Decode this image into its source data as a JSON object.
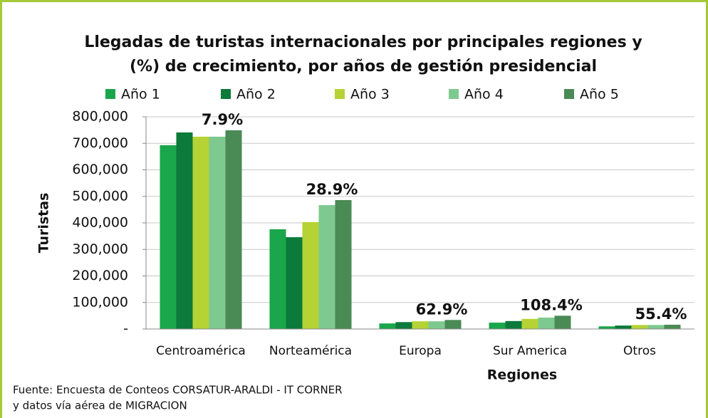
{
  "chart_data": {
    "type": "bar",
    "title": [
      "Llegadas de turistas internacionales por principales regiones y",
      "(%) de crecimiento, por años de gestión presidencial"
    ],
    "categories": [
      "Centroamérica",
      "Norteamérica",
      "Europa",
      "Sur America",
      "Otros"
    ],
    "series": [
      {
        "name": "Año 1",
        "color": "#1aa64b",
        "values": [
          693000,
          376000,
          21000,
          24000,
          10000
        ]
      },
      {
        "name": "Año 2",
        "color": "#0b7a3a",
        "values": [
          741000,
          346000,
          26000,
          30000,
          13000
        ]
      },
      {
        "name": "Año 3",
        "color": "#b5d334",
        "values": [
          725000,
          403000,
          29000,
          38000,
          15000
        ]
      },
      {
        "name": "Año 4",
        "color": "#7ec98f",
        "values": [
          725000,
          467000,
          29000,
          43000,
          15000
        ]
      },
      {
        "name": "Año 5",
        "color": "#4a8a55",
        "values": [
          749000,
          486000,
          34000,
          50000,
          16000
        ]
      }
    ],
    "annotations": [
      "7.9%",
      "28.9%",
      "62.9%",
      "108.4%",
      "55.4%"
    ],
    "ylim": [
      0,
      800000
    ],
    "yticks": [
      {
        "value": 0,
        "label": "-"
      },
      {
        "value": 100000,
        "label": "100,000"
      },
      {
        "value": 200000,
        "label": "200,000"
      },
      {
        "value": 300000,
        "label": "300,000"
      },
      {
        "value": 400000,
        "label": "400,000"
      },
      {
        "value": 500000,
        "label": "500,000"
      },
      {
        "value": 600000,
        "label": "600,000"
      },
      {
        "value": 700000,
        "label": "700,000"
      },
      {
        "value": 800000,
        "label": "800,000"
      }
    ],
    "ylabel": "Turistas",
    "xlabel": "Regiones",
    "grid": true,
    "legend": "top",
    "source": [
      "Fuente: Encuesta de Conteos CORSATUR-ARALDI - IT CORNER",
      "y datos vía aérea de MIGRACION"
    ]
  }
}
